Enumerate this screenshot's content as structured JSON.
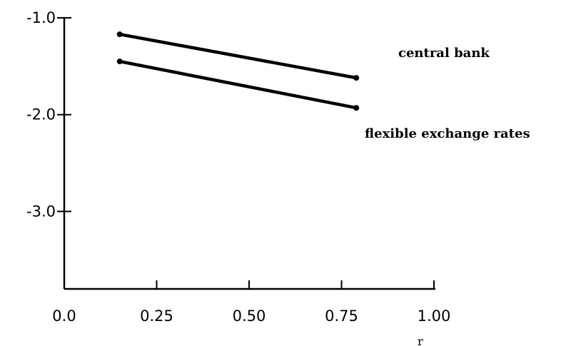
{
  "chart_data": {
    "type": "line",
    "title": "",
    "xlabel": "r",
    "ylabel": "",
    "xlim": [
      0.0,
      1.0
    ],
    "ylim": [
      -3.8,
      -1.0
    ],
    "x_ticks": [
      0.0,
      0.25,
      0.5,
      0.75,
      1.0
    ],
    "x_tick_labels": [
      "0.0",
      "0.25",
      "0.50",
      "0.75",
      "1.00"
    ],
    "y_ticks": [
      -1.0,
      -2.0,
      -3.0
    ],
    "y_tick_labels": [
      "-1.0",
      "-2.0",
      "-3.0"
    ],
    "grid": false,
    "series": [
      {
        "name": "central bank",
        "x": [
          0.15,
          0.79
        ],
        "y": [
          -1.17,
          -1.62
        ]
      },
      {
        "name": "flexible exchange rates",
        "x": [
          0.15,
          0.79
        ],
        "y": [
          -1.45,
          -1.93
        ]
      }
    ]
  }
}
